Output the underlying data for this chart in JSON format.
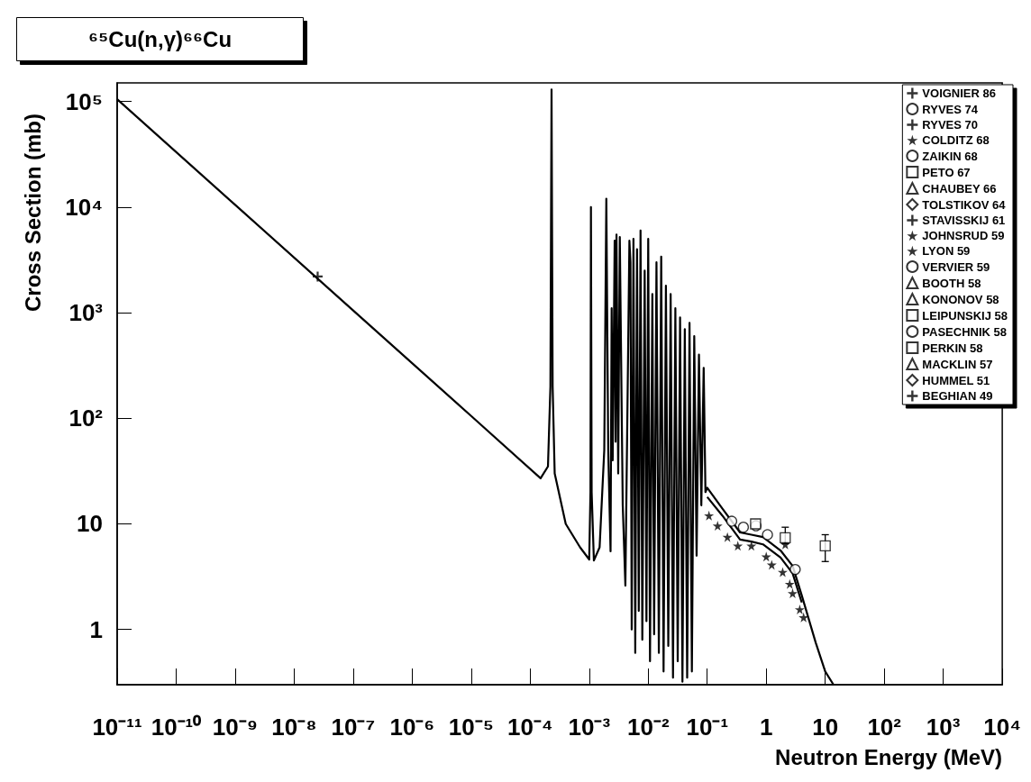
{
  "chart_data": {
    "type": "scatter",
    "title": "⁶⁵Cu(n,γ)⁶⁶Cu",
    "xlabel": "Neutron Energy (MeV)",
    "ylabel": "Cross Section (mb)",
    "log": "xy",
    "grid": false,
    "legend": "top right",
    "xlim": [
      1e-11,
      10000
    ],
    "ylim": [
      0.3,
      150000
    ],
    "xticks": [
      {
        "value": 1e-11,
        "label": "10⁻¹¹"
      },
      {
        "value": 1e-10,
        "label": "10⁻¹⁰"
      },
      {
        "value": 1e-09,
        "label": "10⁻⁹"
      },
      {
        "value": 1e-08,
        "label": "10⁻⁸"
      },
      {
        "value": 1e-07,
        "label": "10⁻⁷"
      },
      {
        "value": 1e-06,
        "label": "10⁻⁶"
      },
      {
        "value": 1e-05,
        "label": "10⁻⁵"
      },
      {
        "value": 0.0001,
        "label": "10⁻⁴"
      },
      {
        "value": 0.001,
        "label": "10⁻³"
      },
      {
        "value": 0.01,
        "label": "10⁻²"
      },
      {
        "value": 0.1,
        "label": "10⁻¹"
      },
      1,
      10,
      {
        "value": 100,
        "label": "10²"
      },
      {
        "value": 1000,
        "label": "10³"
      },
      {
        "value": 10000,
        "label": "10⁴"
      }
    ],
    "yticks": [
      1,
      10,
      {
        "value": 100,
        "label": "10²"
      },
      {
        "value": 1000,
        "label": "10³"
      },
      {
        "value": 10000,
        "label": "10⁴"
      },
      {
        "value": 100000,
        "label": "10⁵"
      }
    ],
    "series": [
      {
        "type": "line",
        "color": "#000000",
        "x": [
          1e-11,
          1e-09,
          1e-07,
          1e-05,
          0.00015,
          0.0002,
          0.00022,
          0.00023,
          0.00024,
          0.00026,
          0.0004,
          0.0007,
          0.001,
          0.00105,
          0.00107,
          0.0011,
          0.0012,
          0.0015,
          0.0018,
          0.00195,
          0.0021,
          0.0023,
          0.0024,
          0.0025,
          0.0027,
          0.0028,
          0.0029,
          0.0031,
          0.0033,
          0.0037,
          0.0041,
          0.0048,
          0.005,
          0.00525,
          0.00562,
          0.00603,
          0.00646,
          0.00692,
          0.00741,
          0.00794,
          0.00871,
          0.00933,
          0.01,
          0.01072,
          0.01175,
          0.01259,
          0.0138,
          0.01514,
          0.0166,
          0.0182,
          0.01995,
          0.02188,
          0.02399,
          0.0263,
          0.02884,
          0.03162,
          0.03467,
          0.03802,
          0.04169,
          0.04571,
          0.05012,
          0.05495,
          0.06026,
          0.06607,
          0.07244,
          0.07943,
          0.0871,
          0.0933,
          0.1,
          0.18,
          0.36,
          0.56,
          0.88,
          1.75,
          2.8,
          4.0,
          6.9,
          10,
          13.8
        ],
        "values": [
          105000,
          10500,
          1050,
          105,
          27,
          35,
          200,
          130000,
          200,
          30,
          10,
          6,
          4.6,
          20,
          10000,
          20,
          4.5,
          6,
          50,
          12000,
          50,
          5.5,
          1100,
          40,
          4800,
          60,
          5500,
          30,
          5200,
          15,
          2.6,
          4800,
          3000,
          1.0,
          5000,
          0.6,
          4000,
          1.5,
          6000,
          0.8,
          2500,
          1.2,
          5000,
          0.5,
          1500,
          0.9,
          3000,
          0.6,
          3400,
          0.4,
          1800,
          0.7,
          1500,
          0.35,
          1100,
          0.5,
          900,
          0.32,
          700,
          0.35,
          800,
          0.4,
          600,
          5,
          400,
          15,
          300,
          20,
          22,
          14,
          8.3,
          7.9,
          7.5,
          5.6,
          4.0,
          2.1,
          0.75,
          0.4,
          0.3
        ]
      },
      {
        "type": "line",
        "color": "#000000",
        "x": [
          0.1,
          0.18,
          0.36,
          0.56,
          0.88,
          1.75,
          2.8,
          4.0
        ],
        "values": [
          18,
          12,
          7.1,
          6.8,
          6.4,
          4.8,
          3.4,
          1.8
        ]
      },
      {
        "name": "VOIGNIER 86",
        "marker": "cross",
        "color": "#000000"
      },
      {
        "name": "RYVES 74",
        "marker": "circle",
        "color": "#000000"
      },
      {
        "name": "RYVES 70",
        "marker": "cross",
        "color": "#000000",
        "x": [
          2.5e-08
        ],
        "values": [
          2200
        ]
      },
      {
        "name": "COLDITZ 68",
        "marker": "star",
        "color": "#000000",
        "x": [
          2.1
        ],
        "values": [
          6.4
        ]
      },
      {
        "name": "ZAIKIN 68",
        "marker": "circle",
        "color": "#000000",
        "x": [
          0.26,
          0.41,
          0.67,
          1.05,
          3.1
        ],
        "values": [
          10.6,
          9.3,
          9.6,
          7.9,
          3.7
        ]
      },
      {
        "name": "PETO 67",
        "marker": "square",
        "color": "#000000",
        "x": [
          2.1
        ],
        "values": [
          7.4
        ],
        "errors": [
          [
            6.5,
            9.3
          ]
        ]
      },
      {
        "name": "CHAUBEY 66",
        "marker": "triangle",
        "color": "#000000"
      },
      {
        "name": "TOLSTIKOV 64",
        "marker": "diamond",
        "color": "#000000"
      },
      {
        "name": "STAVISSKIJ 61",
        "marker": "cross",
        "color": "#000000"
      },
      {
        "name": "JOHNSRUD 59",
        "marker": "star",
        "color": "#000000",
        "x": [
          0.107,
          0.15,
          0.22,
          0.33,
          0.56,
          1.0,
          1.24,
          1.9,
          2.5,
          2.8,
          3.7,
          4.3
        ],
        "values": [
          12,
          9.6,
          7.5,
          6.2,
          6.2,
          4.9,
          4.1,
          3.5,
          2.7,
          2.2,
          1.55,
          1.3
        ]
      },
      {
        "name": "LYON 59",
        "marker": "star",
        "color": "#000000"
      },
      {
        "name": "VERVIER 59",
        "marker": "circle",
        "color": "#000000"
      },
      {
        "name": "BOOTH 58",
        "marker": "triangle",
        "color": "#000000"
      },
      {
        "name": "KONONOV 58",
        "marker": "triangle",
        "color": "#000000"
      },
      {
        "name": "LEIPUNSKIJ 58",
        "marker": "square",
        "color": "#000000",
        "x": [
          0.66
        ],
        "values": [
          10
        ]
      },
      {
        "name": "PASECHNIK 58",
        "marker": "circle",
        "color": "#000000"
      },
      {
        "name": "PERKIN 58",
        "marker": "square",
        "color": "#000000",
        "x": [
          10
        ],
        "values": [
          6.2
        ],
        "errors": [
          [
            4.4,
            7.9
          ]
        ]
      },
      {
        "name": "MACKLIN 57",
        "marker": "triangle",
        "color": "#000000"
      },
      {
        "name": "HUMMEL 51",
        "marker": "diamond",
        "color": "#000000"
      },
      {
        "name": "BEGHIAN 49",
        "marker": "cross",
        "color": "#000000"
      }
    ]
  }
}
